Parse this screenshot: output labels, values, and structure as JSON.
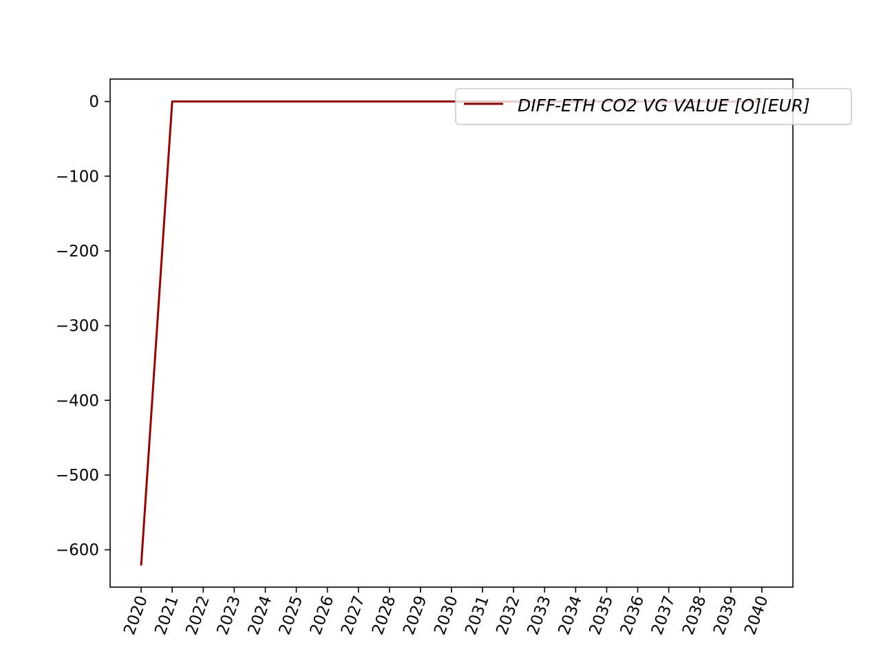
{
  "chart_data": {
    "type": "line",
    "title": "",
    "xlabel": "",
    "ylabel": "",
    "x": [
      "2020",
      "2021",
      "2022",
      "2023",
      "2024",
      "2025",
      "2026",
      "2027",
      "2028",
      "2029",
      "2030",
      "2031",
      "2032",
      "2033",
      "2034",
      "2035",
      "2036",
      "2037",
      "2038",
      "2039",
      "2040"
    ],
    "xlim": [
      2019,
      2041
    ],
    "ylim": [
      -650,
      30
    ],
    "yticks": [
      0,
      -100,
      -200,
      -300,
      -400,
      -500,
      -600
    ],
    "ytick_labels": [
      "0",
      "−100",
      "−200",
      "−300",
      "−400",
      "−500",
      "−600"
    ],
    "series": [
      {
        "name": "DIFF-ETH CO2 VG VALUE [O][EUR]",
        "color": "#8b0000",
        "values": [
          -621,
          0,
          0,
          0,
          0,
          0,
          0,
          0,
          0,
          0,
          0,
          0,
          0,
          0,
          0,
          0,
          0,
          0,
          0,
          0,
          0
        ]
      }
    ],
    "legend": {
      "placement": "top-right"
    },
    "grid": false
  }
}
